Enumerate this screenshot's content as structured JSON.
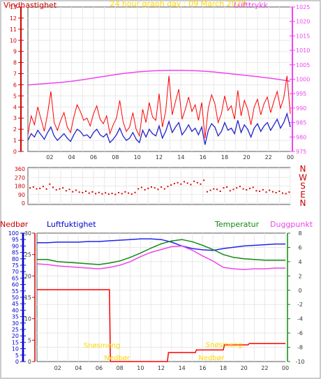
{
  "title": "24 hour graph day : 09 March 2020",
  "colors": {
    "wind_gust": "#ff0000",
    "wind_avg": "#2222cc",
    "pressure": "#ee44ee",
    "direction": "#dd0000",
    "rain": "#ff0000",
    "humidity": "#2222ee",
    "temperature": "#118811",
    "dewpoint": "#ee44ee",
    "blue_axis": "#0000cc",
    "red_axis": "#cc0000",
    "title": "#ffd700",
    "grid": "#e8e8e8",
    "frame": "#555555",
    "axis": "#333333",
    "rain_annotation": "#ffd700"
  },
  "chart_data": [
    {
      "type": "line",
      "panel": "wind-pressure",
      "title": "24 hour graph day : 09 March 2020",
      "x_ticks": [
        "02",
        "04",
        "06",
        "08",
        "10",
        "12",
        "14",
        "16",
        "18",
        "20",
        "22",
        "00"
      ],
      "x_range": [
        0,
        24
      ],
      "left_axis_label": "Vindhastighet",
      "left_axis_range": [
        0,
        13
      ],
      "left_ticks": [
        "0",
        "1",
        "2",
        "3",
        "4",
        "5",
        "6",
        "7",
        "8",
        "9",
        "10",
        "11",
        "12",
        "13"
      ],
      "right_axis_label": "Lufttrykk",
      "right_axis_range": [
        975,
        1025
      ],
      "right_ticks": [
        "975",
        "980",
        "985",
        "990",
        "995",
        "1000",
        "1005",
        "1010",
        "1015",
        "1020",
        "1025"
      ],
      "series": [
        {
          "key": "gust",
          "x": [
            0.0,
            0.3,
            0.6,
            0.9,
            1.2,
            1.5,
            1.8,
            2.1,
            2.4,
            2.7,
            3.0,
            3.3,
            3.6,
            3.9,
            4.2,
            4.5,
            4.8,
            5.1,
            5.4,
            5.7,
            6.0,
            6.3,
            6.6,
            6.9,
            7.2,
            7.5,
            7.8,
            8.1,
            8.4,
            8.7,
            9.0,
            9.3,
            9.6,
            9.9,
            10.2,
            10.5,
            10.8,
            11.1,
            11.4,
            11.7,
            12.0,
            12.3,
            12.6,
            12.9,
            13.2,
            13.5,
            13.8,
            14.1,
            14.4,
            14.7,
            15.0,
            15.3,
            15.6,
            15.9,
            16.2,
            16.5,
            16.8,
            17.1,
            17.4,
            17.7,
            18.0,
            18.3,
            18.6,
            18.9,
            19.2,
            19.5,
            19.8,
            20.1,
            20.4,
            20.7,
            21.0,
            21.3,
            21.6,
            21.9,
            22.2,
            22.5,
            22.8,
            23.1,
            23.4,
            23.7,
            24.0
          ],
          "values": [
            1.5,
            3.2,
            2.4,
            4.0,
            2.9,
            1.8,
            3.4,
            5.4,
            2.6,
            1.9,
            2.8,
            3.5,
            2.2,
            1.7,
            3.1,
            4.2,
            3.6,
            2.8,
            3.0,
            2.3,
            3.4,
            4.1,
            2.9,
            2.5,
            3.2,
            1.6,
            2.4,
            3.0,
            4.6,
            2.7,
            1.8,
            2.2,
            3.5,
            2.0,
            1.4,
            3.8,
            2.6,
            4.4,
            3.1,
            2.8,
            5.2,
            2.2,
            3.6,
            6.8,
            3.3,
            4.5,
            5.6,
            2.9,
            3.8,
            4.9,
            3.6,
            4.2,
            2.8,
            4.4,
            1.2,
            3.9,
            5.1,
            4.3,
            2.6,
            3.4,
            5.0,
            3.7,
            4.1,
            2.9,
            5.5,
            3.2,
            4.6,
            3.8,
            2.4,
            4.0,
            4.7,
            3.3,
            4.3,
            4.9,
            3.5,
            4.5,
            5.4,
            3.9,
            4.8,
            6.8,
            3.4
          ]
        },
        {
          "key": "average",
          "x": [
            0.0,
            0.3,
            0.6,
            0.9,
            1.2,
            1.5,
            1.8,
            2.1,
            2.4,
            2.7,
            3.0,
            3.3,
            3.6,
            3.9,
            4.2,
            4.5,
            4.8,
            5.1,
            5.4,
            5.7,
            6.0,
            6.3,
            6.6,
            6.9,
            7.2,
            7.5,
            7.8,
            8.1,
            8.4,
            8.7,
            9.0,
            9.3,
            9.6,
            9.9,
            10.2,
            10.5,
            10.8,
            11.1,
            11.4,
            11.7,
            12.0,
            12.3,
            12.6,
            12.9,
            13.2,
            13.5,
            13.8,
            14.1,
            14.4,
            14.7,
            15.0,
            15.3,
            15.6,
            15.9,
            16.2,
            16.5,
            16.8,
            17.1,
            17.4,
            17.7,
            18.0,
            18.3,
            18.6,
            18.9,
            19.2,
            19.5,
            19.8,
            20.1,
            20.4,
            20.7,
            21.0,
            21.3,
            21.6,
            21.9,
            22.2,
            22.5,
            22.8,
            23.1,
            23.4,
            23.7,
            24.0
          ],
          "values": [
            1.0,
            1.6,
            1.3,
            1.9,
            1.5,
            1.1,
            1.7,
            2.2,
            1.4,
            1.0,
            1.3,
            1.6,
            1.2,
            0.9,
            1.5,
            2.0,
            1.8,
            1.4,
            1.5,
            1.2,
            1.7,
            2.0,
            1.5,
            1.3,
            1.6,
            0.8,
            1.1,
            1.5,
            2.1,
            1.4,
            1.0,
            1.2,
            1.7,
            1.1,
            0.8,
            1.9,
            1.3,
            2.0,
            1.6,
            1.4,
            2.3,
            1.2,
            1.8,
            2.7,
            1.7,
            2.2,
            2.6,
            1.5,
            1.9,
            2.4,
            1.8,
            2.1,
            1.5,
            2.2,
            0.6,
            1.9,
            2.5,
            2.2,
            1.4,
            1.8,
            2.6,
            1.9,
            2.1,
            1.6,
            2.8,
            1.7,
            2.4,
            2.0,
            1.3,
            2.1,
            2.5,
            1.8,
            2.3,
            2.6,
            1.9,
            2.4,
            2.9,
            2.1,
            2.6,
            3.4,
            2.2
          ]
        },
        {
          "key": "pressure",
          "x": [
            0,
            1,
            2,
            3,
            4,
            5,
            6,
            7,
            8,
            9,
            10,
            11,
            12,
            13,
            14,
            15,
            16,
            17,
            18,
            19,
            20,
            21,
            22,
            23,
            24
          ],
          "values": [
            998.0,
            998.3,
            998.6,
            998.9,
            999.3,
            999.8,
            1000.4,
            1001.0,
            1001.6,
            1002.1,
            1002.5,
            1002.8,
            1003.0,
            1003.1,
            1003.1,
            1003.0,
            1002.8,
            1002.5,
            1002.1,
            1001.7,
            1001.3,
            1000.9,
            1000.4,
            999.9,
            999.3
          ]
        }
      ]
    },
    {
      "type": "scatter",
      "panel": "wind-direction",
      "x_range": [
        0,
        24
      ],
      "y_range": [
        0,
        360
      ],
      "y_ticks": [
        "0",
        "90",
        "180",
        "270",
        "360"
      ],
      "direction_labels": [
        "N",
        "W",
        "S",
        "E",
        "N"
      ],
      "series": [
        {
          "key": "direction",
          "x": [
            0.2,
            0.5,
            0.8,
            1.1,
            1.4,
            1.7,
            2.0,
            2.3,
            2.6,
            2.9,
            3.2,
            3.5,
            3.8,
            4.1,
            4.4,
            4.7,
            5.0,
            5.3,
            5.6,
            5.9,
            6.2,
            6.5,
            6.8,
            7.1,
            7.4,
            7.7,
            8.0,
            8.3,
            8.6,
            8.9,
            9.2,
            9.5,
            9.8,
            10.1,
            10.4,
            10.7,
            11.0,
            11.3,
            11.6,
            11.9,
            12.2,
            12.5,
            12.8,
            13.1,
            13.4,
            13.7,
            14.0,
            14.3,
            14.6,
            14.9,
            15.2,
            15.5,
            15.8,
            16.1,
            16.4,
            16.7,
            17.0,
            17.3,
            17.6,
            17.9,
            18.2,
            18.5,
            18.8,
            19.1,
            19.4,
            19.7,
            20.0,
            20.3,
            20.6,
            20.9,
            21.2,
            21.5,
            21.8,
            22.1,
            22.4,
            22.7,
            23.0,
            23.3,
            23.6,
            23.9
          ],
          "values": [
            160,
            170,
            150,
            155,
            175,
            148,
            200,
            165,
            140,
            150,
            160,
            130,
            145,
            120,
            135,
            115,
            110,
            125,
            105,
            118,
            100,
            112,
            98,
            108,
            95,
            102,
            92,
            110,
            100,
            118,
            105,
            95,
            112,
            150,
            165,
            140,
            155,
            170,
            160,
            145,
            168,
            150,
            175,
            190,
            205,
            215,
            200,
            225,
            210,
            195,
            230,
            215,
            200,
            240,
            120,
            135,
            150,
            145,
            125,
            160,
            170,
            130,
            145,
            160,
            175,
            150,
            140,
            155,
            165,
            130,
            125,
            140,
            115,
            135,
            120,
            110,
            125,
            105,
            100,
            115
          ]
        }
      ]
    },
    {
      "type": "line",
      "panel": "rain-humidity-temperature",
      "x_ticks": [
        "02",
        "04",
        "06",
        "08",
        "10",
        "12",
        "14",
        "16",
        "18",
        "20",
        "22",
        "00"
      ],
      "x_range": [
        0,
        24
      ],
      "rain_axis_label": "Nedbør",
      "rain_range": [
        0,
        100
      ],
      "rain_ticks": [
        "0",
        "5",
        "10",
        "15",
        "20",
        "25",
        "30",
        "35",
        "40",
        "45",
        "50",
        "55",
        "60",
        "65",
        "70",
        "75",
        "80",
        "85",
        "90",
        "95",
        "100"
      ],
      "humidity_axis_label": "Luftfuktighet",
      "humidity_range": [
        0,
        30
      ],
      "humidity_ticks": [
        "0",
        "5",
        "10",
        "15",
        "20",
        "25",
        "30"
      ],
      "temperature_axis_label": "Temperatur",
      "dewpoint_axis_label": "Duggpunkt",
      "temperature_range": [
        -10,
        8
      ],
      "temperature_ticks": [
        "-10",
        "-8",
        "-6",
        "-4",
        "-2",
        "0",
        "2",
        "4",
        "6",
        "8"
      ],
      "annotations": [
        "Snøsmeng",
        "Nedbør",
        "Snøsmeng",
        "Nedbør"
      ],
      "series": [
        {
          "key": "rain",
          "x": [
            0,
            7,
            7.1,
            12.6,
            12.7,
            15.3,
            15.4,
            18.0,
            18.1,
            20.4,
            20.5,
            24
          ],
          "values": [
            56,
            56,
            0,
            0,
            7,
            7,
            9,
            9,
            13,
            13,
            14,
            14
          ]
        },
        {
          "key": "humidity",
          "x": [
            0,
            1,
            2,
            3,
            4,
            5,
            6,
            7,
            8,
            9,
            10,
            11,
            12,
            13,
            14,
            15,
            16,
            17,
            18,
            19,
            20,
            21,
            22,
            23,
            24
          ],
          "values": [
            92.5,
            92.5,
            93,
            93,
            93,
            93.5,
            93.5,
            94,
            94.5,
            95,
            95.5,
            95.5,
            95,
            93,
            90,
            88,
            87,
            86.5,
            88,
            89,
            90,
            90.5,
            91,
            91.5,
            91.5
          ]
        },
        {
          "key": "temperature",
          "x": [
            0,
            1,
            2,
            3,
            4,
            5,
            6,
            7,
            8,
            9,
            10,
            11,
            12,
            13,
            14,
            15,
            16,
            17,
            18,
            19,
            20,
            21,
            22,
            23,
            24
          ],
          "values": [
            4.3,
            4.3,
            4.0,
            3.9,
            3.8,
            3.7,
            3.6,
            3.8,
            4.1,
            4.6,
            5.2,
            5.9,
            6.5,
            6.9,
            7.1,
            6.8,
            6.3,
            5.7,
            5.0,
            4.6,
            4.4,
            4.3,
            4.2,
            4.2,
            4.2
          ]
        },
        {
          "key": "dewpoint",
          "x": [
            0,
            1,
            2,
            3,
            4,
            5,
            6,
            7,
            8,
            9,
            10,
            11,
            12,
            13,
            14,
            15,
            16,
            17,
            18,
            19,
            20,
            21,
            22,
            23,
            24
          ],
          "values": [
            3.7,
            3.6,
            3.4,
            3.3,
            3.2,
            3.1,
            3.0,
            3.2,
            3.5,
            4.0,
            4.7,
            5.3,
            5.7,
            6.1,
            6.2,
            5.6,
            4.8,
            4.1,
            3.2,
            3.0,
            2.9,
            3.0,
            3.0,
            3.1,
            3.1
          ]
        }
      ]
    }
  ]
}
